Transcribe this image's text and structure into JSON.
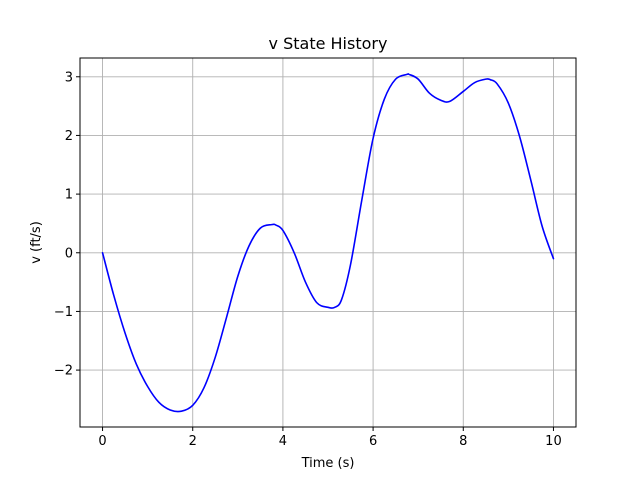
{
  "chart_data": {
    "type": "line",
    "title": "v State History",
    "xlabel": "Time (s)",
    "ylabel": "v (ft/s)",
    "xlim": [
      -0.5,
      10.5
    ],
    "ylim": [
      -2.97,
      3.32
    ],
    "xticks": [
      0,
      2,
      4,
      6,
      8,
      10
    ],
    "xtick_labels": [
      "0",
      "2",
      "4",
      "6",
      "8",
      "10"
    ],
    "yticks": [
      -2,
      -1,
      0,
      1,
      2,
      3
    ],
    "ytick_labels": [
      "−2",
      "−1",
      "0",
      "1",
      "2",
      "3"
    ],
    "grid": true,
    "series": [
      {
        "color": "#0000ff",
        "x": [
          0,
          0.25,
          0.5,
          0.75,
          1.0,
          1.25,
          1.5,
          1.75,
          2.0,
          2.25,
          2.5,
          2.75,
          3.0,
          3.25,
          3.5,
          3.75,
          3.85,
          4.0,
          4.25,
          4.5,
          4.75,
          5.0,
          5.15,
          5.3,
          5.5,
          5.75,
          6.0,
          6.25,
          6.5,
          6.75,
          6.8,
          7.0,
          7.25,
          7.5,
          7.7,
          8.0,
          8.25,
          8.5,
          8.6,
          8.75,
          9.0,
          9.25,
          9.5,
          9.75,
          10.0
        ],
        "y": [
          0.0,
          -0.73,
          -1.37,
          -1.9,
          -2.28,
          -2.55,
          -2.68,
          -2.7,
          -2.6,
          -2.3,
          -1.78,
          -1.1,
          -0.4,
          0.12,
          0.42,
          0.48,
          0.47,
          0.38,
          0.0,
          -0.5,
          -0.85,
          -0.93,
          -0.93,
          -0.8,
          -0.2,
          0.9,
          1.95,
          2.62,
          2.96,
          3.04,
          3.04,
          2.96,
          2.72,
          2.6,
          2.58,
          2.75,
          2.9,
          2.96,
          2.95,
          2.88,
          2.55,
          1.98,
          1.23,
          0.45,
          -0.1
        ]
      }
    ]
  }
}
